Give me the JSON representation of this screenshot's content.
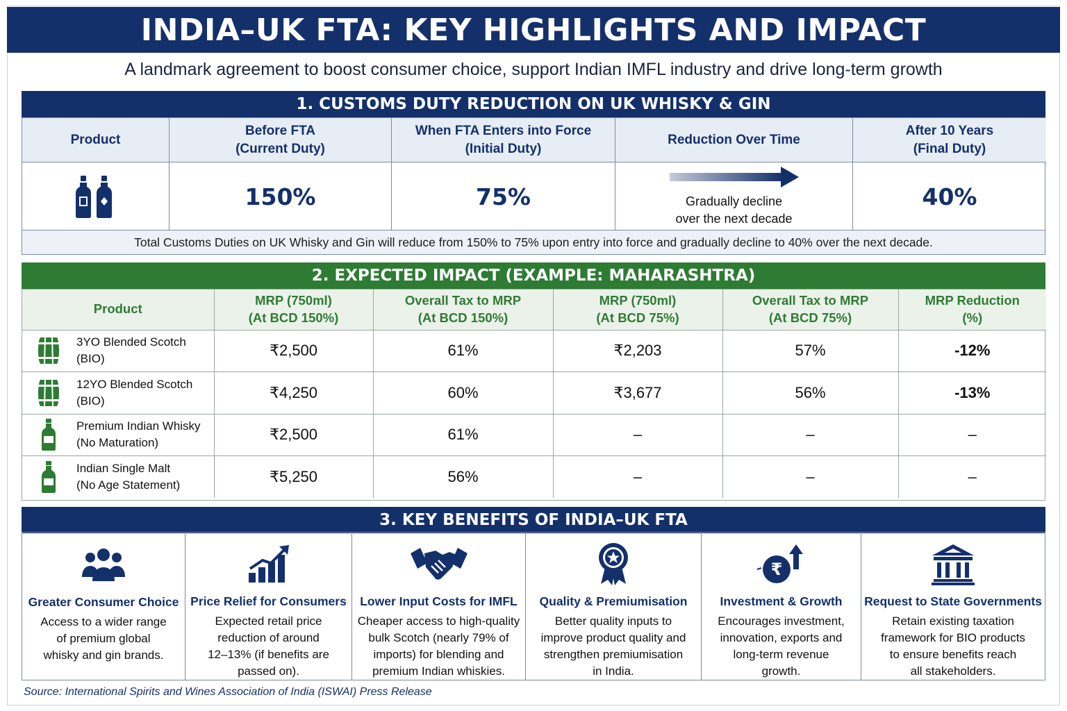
{
  "title": "INDIA–UK FTA: KEY HIGHLIGHTS AND IMPACT",
  "subtitle": "A landmark agreement to boost consumer choice, support Indian IMFL industry and drive long-term growth",
  "section1": {
    "header": "1. CUSTOMS DUTY REDUCTION ON UK WHISKY & GIN",
    "columns": {
      "product": "Product",
      "before_l1": "Before FTA",
      "before_l2": "(Current Duty)",
      "when_l1": "When FTA Enters into Force",
      "when_l2": "(Initial Duty)",
      "reduction": "Reduction Over Time",
      "after_l1": "After 10 Years",
      "after_l2": "(Final Duty)"
    },
    "values": {
      "before": "150%",
      "initial": "75%",
      "reduction_l1": "Gradually decline",
      "reduction_l2": "over the next decade",
      "final": "40%"
    },
    "product_icon": "two-bottles-icon",
    "note": "Total Customs Duties on UK Whisky and Gin will reduce from 150% to 75% upon entry into force and gradually decline to 40% over the next decade."
  },
  "section2": {
    "header": "2. EXPECTED IMPACT (EXAMPLE: MAHARASHTRA)",
    "columns": {
      "product": "Product",
      "mrp150_l1": "MRP (750ml)",
      "mrp150_l2": "(At BCD 150%)",
      "tax150_l1": "Overall Tax to MRP",
      "tax150_l2": "(At BCD 150%)",
      "mrp75_l1": "MRP (750ml)",
      "mrp75_l2": "(At BCD 75%)",
      "tax75_l1": "Overall Tax to MRP",
      "tax75_l2": "(At BCD 75%)",
      "red_l1": "MRP Reduction",
      "red_l2": "(%)"
    },
    "rows": [
      {
        "icon": "barrel-icon",
        "name_l1": "3YO Blended Scotch",
        "name_l2": "(BIO)",
        "mrp150": "₹2,500",
        "tax150": "61%",
        "mrp75": "₹2,203",
        "tax75": "57%",
        "reduction": "-12%"
      },
      {
        "icon": "barrel-icon",
        "name_l1": "12YO Blended Scotch",
        "name_l2": "(BIO)",
        "mrp150": "₹4,250",
        "tax150": "60%",
        "mrp75": "₹3,677",
        "tax75": "56%",
        "reduction": "-13%"
      },
      {
        "icon": "bottle-icon",
        "name_l1": "Premium Indian Whisky",
        "name_l2": "(No Maturation)",
        "mrp150": "₹2,500",
        "tax150": "61%",
        "mrp75": "–",
        "tax75": "–",
        "reduction": "–"
      },
      {
        "icon": "bottle-icon",
        "name_l1": "Indian Single Malt",
        "name_l2": "(No Age Statement)",
        "mrp150": "₹5,250",
        "tax150": "56%",
        "mrp75": "–",
        "tax75": "–",
        "reduction": "–"
      }
    ]
  },
  "section3": {
    "header": "3. KEY BENEFITS OF INDIA–UK FTA",
    "cards": [
      {
        "icon": "people-icon",
        "title": "Greater Consumer Choice",
        "lines": [
          "Access to a wider range",
          "of premium global",
          "whisky and gin brands."
        ]
      },
      {
        "icon": "bar-growth-icon",
        "title": "Price Relief for Consumers",
        "lines": [
          "Expected retail price",
          "reduction of around",
          "12–13% (if benefits are",
          "passed on)."
        ]
      },
      {
        "icon": "handshake-icon",
        "title": "Lower Input Costs for IMFL",
        "lines": [
          "Cheaper access to high-quality",
          "bulk Scotch (nearly 79% of",
          "imports) for blending and",
          "premium Indian whiskies."
        ]
      },
      {
        "icon": "award-ribbon-icon",
        "title": "Quality & Premiumisation",
        "lines": [
          "Better quality inputs to",
          "improve product quality and",
          "strengthen premiumisation",
          "in India."
        ]
      },
      {
        "icon": "rupee-growth-icon",
        "title": "Investment & Growth",
        "lines": [
          "Encourages investment,",
          "innovation, exports and",
          "long-term revenue",
          "growth."
        ]
      },
      {
        "icon": "government-building-icon",
        "title": "Request to State Governments",
        "lines": [
          "Retain existing taxation",
          "framework for BIO products",
          "to ensure benefits reach",
          "all stakeholders."
        ]
      }
    ]
  },
  "colors": {
    "navy": "#14306b",
    "green": "#2e7b34",
    "red": "#c0282d"
  },
  "source": "Source: International Spirits and Wines Association of India (ISWAI) Press Release"
}
